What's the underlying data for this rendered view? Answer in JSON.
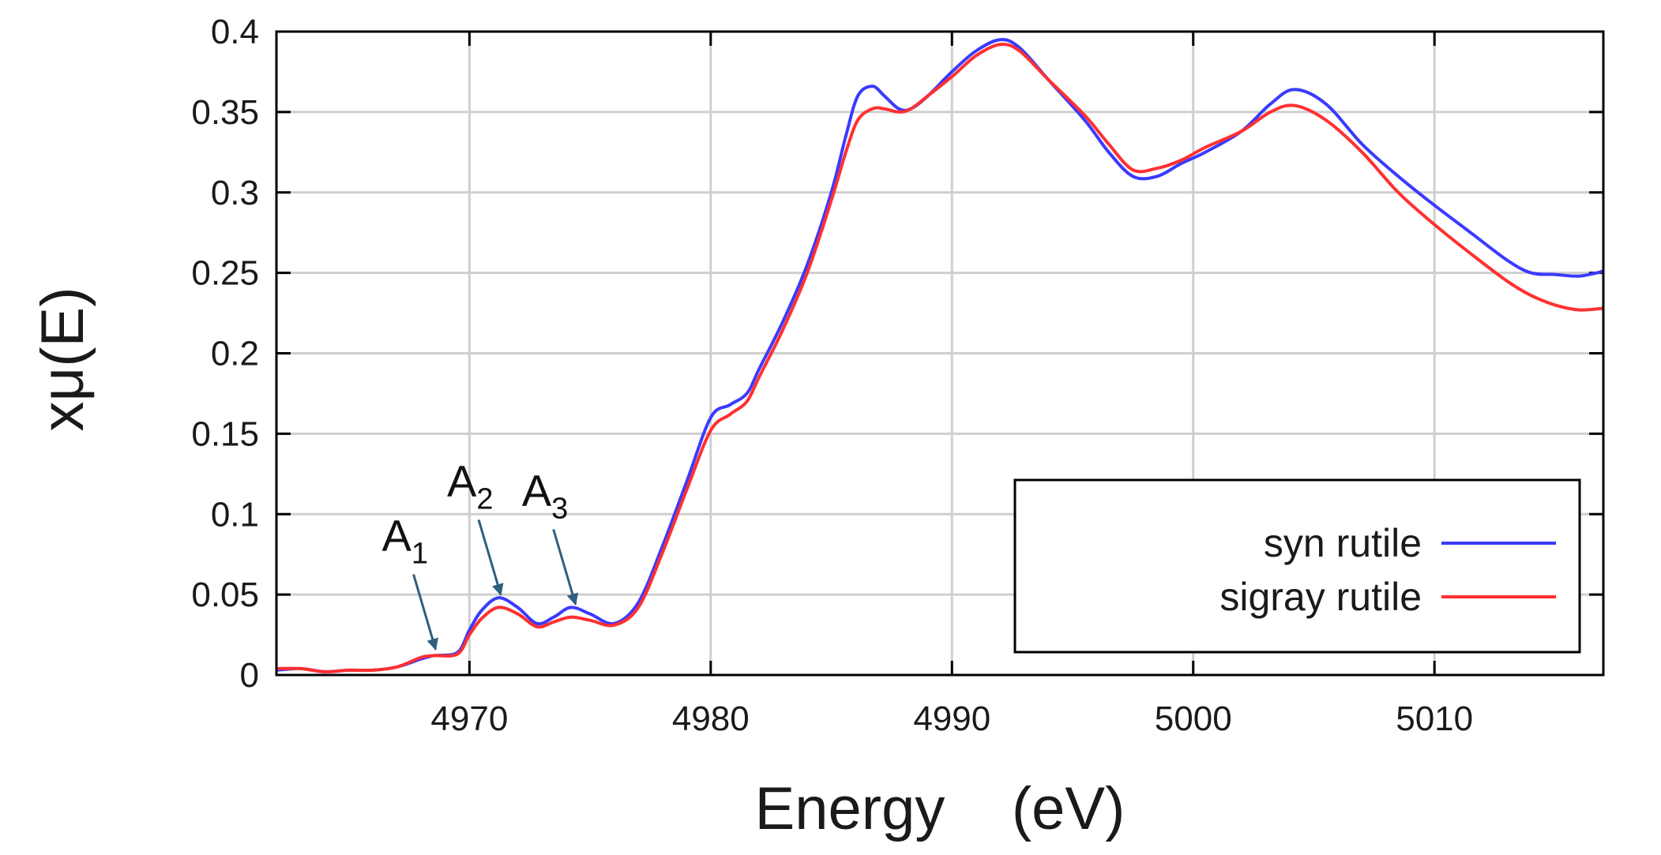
{
  "chart_data": {
    "type": "line",
    "title": "",
    "xlabel": "Energy    (eV)",
    "ylabel": "xμ(E)",
    "xlim": [
      4962,
      5017
    ],
    "ylim": [
      0,
      0.4
    ],
    "xticks": [
      "4970",
      "4980",
      "4990",
      "5000",
      "5010"
    ],
    "yticks": [
      "0",
      "0.05",
      "0.1",
      "0.15",
      "0.2",
      "0.25",
      "0.3",
      "0.35",
      "0.4"
    ],
    "grid": true,
    "legend_position": "bottom-right",
    "series": [
      {
        "name": "syn rutile",
        "color": "#3a3aff",
        "x": [
          4962,
          4963,
          4964,
          4965,
          4966,
          4967,
          4968,
          4968.5,
          4969.5,
          4970,
          4970.5,
          4971.2,
          4972,
          4972.8,
          4973.5,
          4974.2,
          4975,
          4976,
          4977,
          4978,
          4979,
          4980,
          4980.8,
          4981.5,
          4982,
          4983,
          4984,
          4985,
          4985.6,
          4986.1,
          4986.7,
          4987.2,
          4987.8,
          4988.3,
          4989,
          4990,
          4991,
          4992,
          4992.8,
          4994,
          4995.5,
          4996.5,
          4997.5,
          4998.5,
          4999.5,
          5000.5,
          5002,
          5003.2,
          5004.2,
          5005.5,
          5007,
          5008.5,
          5010,
          5011.5,
          5013,
          5014,
          5015,
          5016,
          5017
        ],
        "values": [
          0.003,
          0.004,
          0.002,
          0.003,
          0.003,
          0.005,
          0.01,
          0.012,
          0.014,
          0.028,
          0.04,
          0.048,
          0.042,
          0.032,
          0.036,
          0.042,
          0.038,
          0.032,
          0.045,
          0.08,
          0.12,
          0.16,
          0.168,
          0.175,
          0.19,
          0.22,
          0.255,
          0.3,
          0.335,
          0.36,
          0.366,
          0.36,
          0.352,
          0.352,
          0.36,
          0.375,
          0.388,
          0.395,
          0.39,
          0.37,
          0.345,
          0.325,
          0.31,
          0.31,
          0.318,
          0.325,
          0.338,
          0.355,
          0.364,
          0.355,
          0.33,
          0.31,
          0.292,
          0.275,
          0.258,
          0.25,
          0.249,
          0.248,
          0.251
        ]
      },
      {
        "name": "sigray rutile",
        "color": "#ff3030",
        "x": [
          4962,
          4963,
          4964,
          4965,
          4966,
          4967,
          4968,
          4968.5,
          4969.5,
          4970,
          4970.5,
          4971.2,
          4972,
          4972.8,
          4973.5,
          4974.2,
          4975,
          4976,
          4977,
          4978,
          4979,
          4980,
          4980.8,
          4981.5,
          4982,
          4983,
          4984,
          4985,
          4985.6,
          4986.1,
          4986.7,
          4987.2,
          4987.8,
          4988.3,
          4989,
          4990,
          4991,
          4992,
          4992.8,
          4994,
          4995.5,
          4996.5,
          4997.5,
          4998.5,
          4999.5,
          5000.5,
          5002,
          5003.2,
          5004.2,
          5005.5,
          5007,
          5008.5,
          5010,
          5011.5,
          5013,
          5014,
          5015,
          5016,
          5017
        ],
        "values": [
          0.004,
          0.004,
          0.002,
          0.003,
          0.003,
          0.005,
          0.011,
          0.012,
          0.013,
          0.025,
          0.035,
          0.042,
          0.038,
          0.03,
          0.033,
          0.036,
          0.034,
          0.031,
          0.042,
          0.076,
          0.115,
          0.152,
          0.162,
          0.17,
          0.185,
          0.215,
          0.25,
          0.295,
          0.325,
          0.345,
          0.352,
          0.352,
          0.35,
          0.352,
          0.36,
          0.372,
          0.385,
          0.392,
          0.388,
          0.37,
          0.348,
          0.33,
          0.314,
          0.315,
          0.32,
          0.328,
          0.338,
          0.35,
          0.354,
          0.345,
          0.325,
          0.3,
          0.28,
          0.262,
          0.245,
          0.236,
          0.23,
          0.227,
          0.228
        ]
      }
    ],
    "annotations": [
      {
        "label": "A",
        "sub": "1",
        "x": 4968.5,
        "y": 0.012
      },
      {
        "label": "A",
        "sub": "2",
        "x": 4971.2,
        "y": 0.046
      },
      {
        "label": "A",
        "sub": "3",
        "x": 4974.3,
        "y": 0.04
      }
    ],
    "annotation_color": "#2e5f7e"
  }
}
